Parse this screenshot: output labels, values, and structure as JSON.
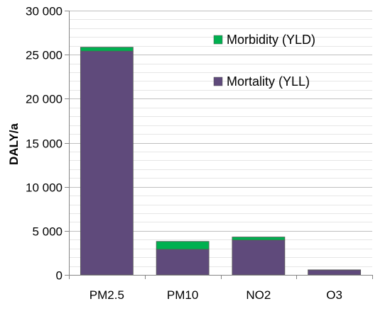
{
  "chart_data": {
    "type": "bar",
    "stacked": true,
    "categories": [
      "PM2.5",
      "PM10",
      "NO2",
      "O3"
    ],
    "series": [
      {
        "name": "Mortality (YLL)",
        "color": "#5f4a7b",
        "values": [
          25400,
          2900,
          3950,
          550
        ]
      },
      {
        "name": "Morbidity (YLD)",
        "color": "#00b050",
        "values": [
          450,
          900,
          350,
          20
        ]
      }
    ],
    "xlabel": "",
    "ylabel": "DALY/a",
    "ylim": [
      0,
      30000
    ],
    "yticks": [
      0,
      5000,
      10000,
      15000,
      20000,
      25000,
      30000
    ],
    "ytick_labels": [
      "0",
      "5 000",
      "10 000",
      "15 000",
      "20 000",
      "25 000",
      "30 000"
    ],
    "grid": true,
    "legend_position": "top-right",
    "legend_order": [
      "Morbidity (YLD)",
      "Mortality (YLL)"
    ]
  }
}
